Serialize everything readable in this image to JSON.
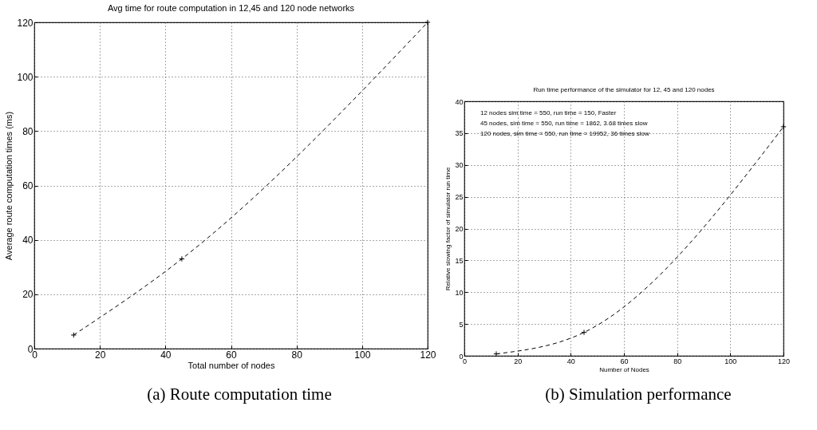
{
  "chart_data": [
    {
      "type": "line",
      "title": "Avg time for route computation in 12,45 and 120 node networks",
      "xlabel": "Total number of nodes",
      "ylabel": "Average route computation times (ms)",
      "x": [
        12,
        45,
        120
      ],
      "series": [
        {
          "color": "#000000",
          "values": [
            5,
            33,
            120
          ]
        }
      ],
      "xlim": [
        0,
        120
      ],
      "xticks": [
        0,
        20,
        40,
        60,
        80,
        100,
        120
      ],
      "ylim": [
        0,
        120
      ],
      "yticks": [
        0,
        20,
        40,
        60,
        80,
        100,
        120
      ],
      "grid": true,
      "marker": "cross",
      "line_style": "dashed",
      "annotations": [
        "(a) Route computation time"
      ]
    },
    {
      "type": "line",
      "title": "Run time performance of the simulator for 12, 45 and 120 nodes",
      "xlabel": "Number of Nodes",
      "ylabel": "Relative slowing factor of simulator run time",
      "x": [
        12,
        45,
        120
      ],
      "series": [
        {
          "color": "#000000",
          "values": [
            0.3,
            3.68,
            36
          ]
        }
      ],
      "xlim": [
        0,
        120
      ],
      "xticks": [
        0,
        20,
        40,
        60,
        80,
        100,
        120
      ],
      "ylim": [
        0,
        40
      ],
      "yticks": [
        0,
        5,
        10,
        15,
        20,
        25,
        30,
        35,
        40
      ],
      "grid": true,
      "marker": "cross",
      "line_style": "dashed",
      "annotations": [
        "12 nodes sim time = 550, run time = 150, Faster",
        "45 nodes, sim time = 550, run time = 1862, 3.68 times slow",
        "120 nodes, sim time = 550, run time = 19952, 36 times slow",
        "(b) Simulation performance"
      ]
    }
  ]
}
